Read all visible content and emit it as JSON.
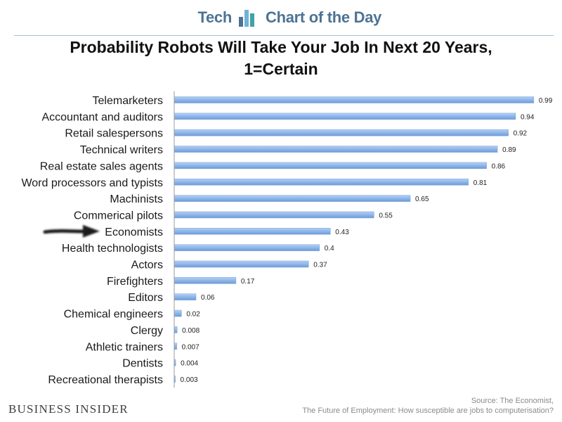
{
  "header": {
    "left_word": "Tech",
    "right_word": "Chart of the Day",
    "accent_color": "#4d7394"
  },
  "title": "Probability Robots Will Take Your Job In Next 20 Years, 1=Certain",
  "chart_data": {
    "type": "bar",
    "orientation": "horizontal",
    "title": "Probability Robots Will Take Your Job In Next 20 Years, 1=Certain",
    "xlabel": "",
    "ylabel": "",
    "xlim": [
      0,
      1
    ],
    "grid": false,
    "legend": "none",
    "bar_color": "#8bb3e8",
    "highlighted_category": "Economists",
    "categories": [
      "Telemarketers",
      "Accountant and auditors",
      "Retail salespersons",
      "Technical writers",
      "Real estate sales agents",
      "Word processors and typists",
      "Machinists",
      "Commerical pilots",
      "Economists",
      "Health technologists",
      "Actors",
      "Firefighters",
      "Editors",
      "Chemical engineers",
      "Clergy",
      "Athletic trainers",
      "Dentists",
      "Recreational therapists"
    ],
    "values": [
      0.99,
      0.94,
      0.92,
      0.89,
      0.86,
      0.81,
      0.65,
      0.55,
      0.43,
      0.4,
      0.37,
      0.17,
      0.06,
      0.02,
      0.008,
      0.007,
      0.004,
      0.003
    ],
    "value_labels": [
      "0.99",
      "0.94",
      "0.92",
      "0.89",
      "0.86",
      "0.81",
      "0.65",
      "0.55",
      "0.43",
      "0.4",
      "0.37",
      "0.17",
      "0.06",
      "0.02",
      "0.008",
      "0.007",
      "0.004",
      "0.003"
    ]
  },
  "footer": {
    "brand": "Business Insider",
    "source_line1": "Source: The Economist,",
    "source_line2": "The Future of Employment: How susceptible are jobs to computerisation?"
  }
}
